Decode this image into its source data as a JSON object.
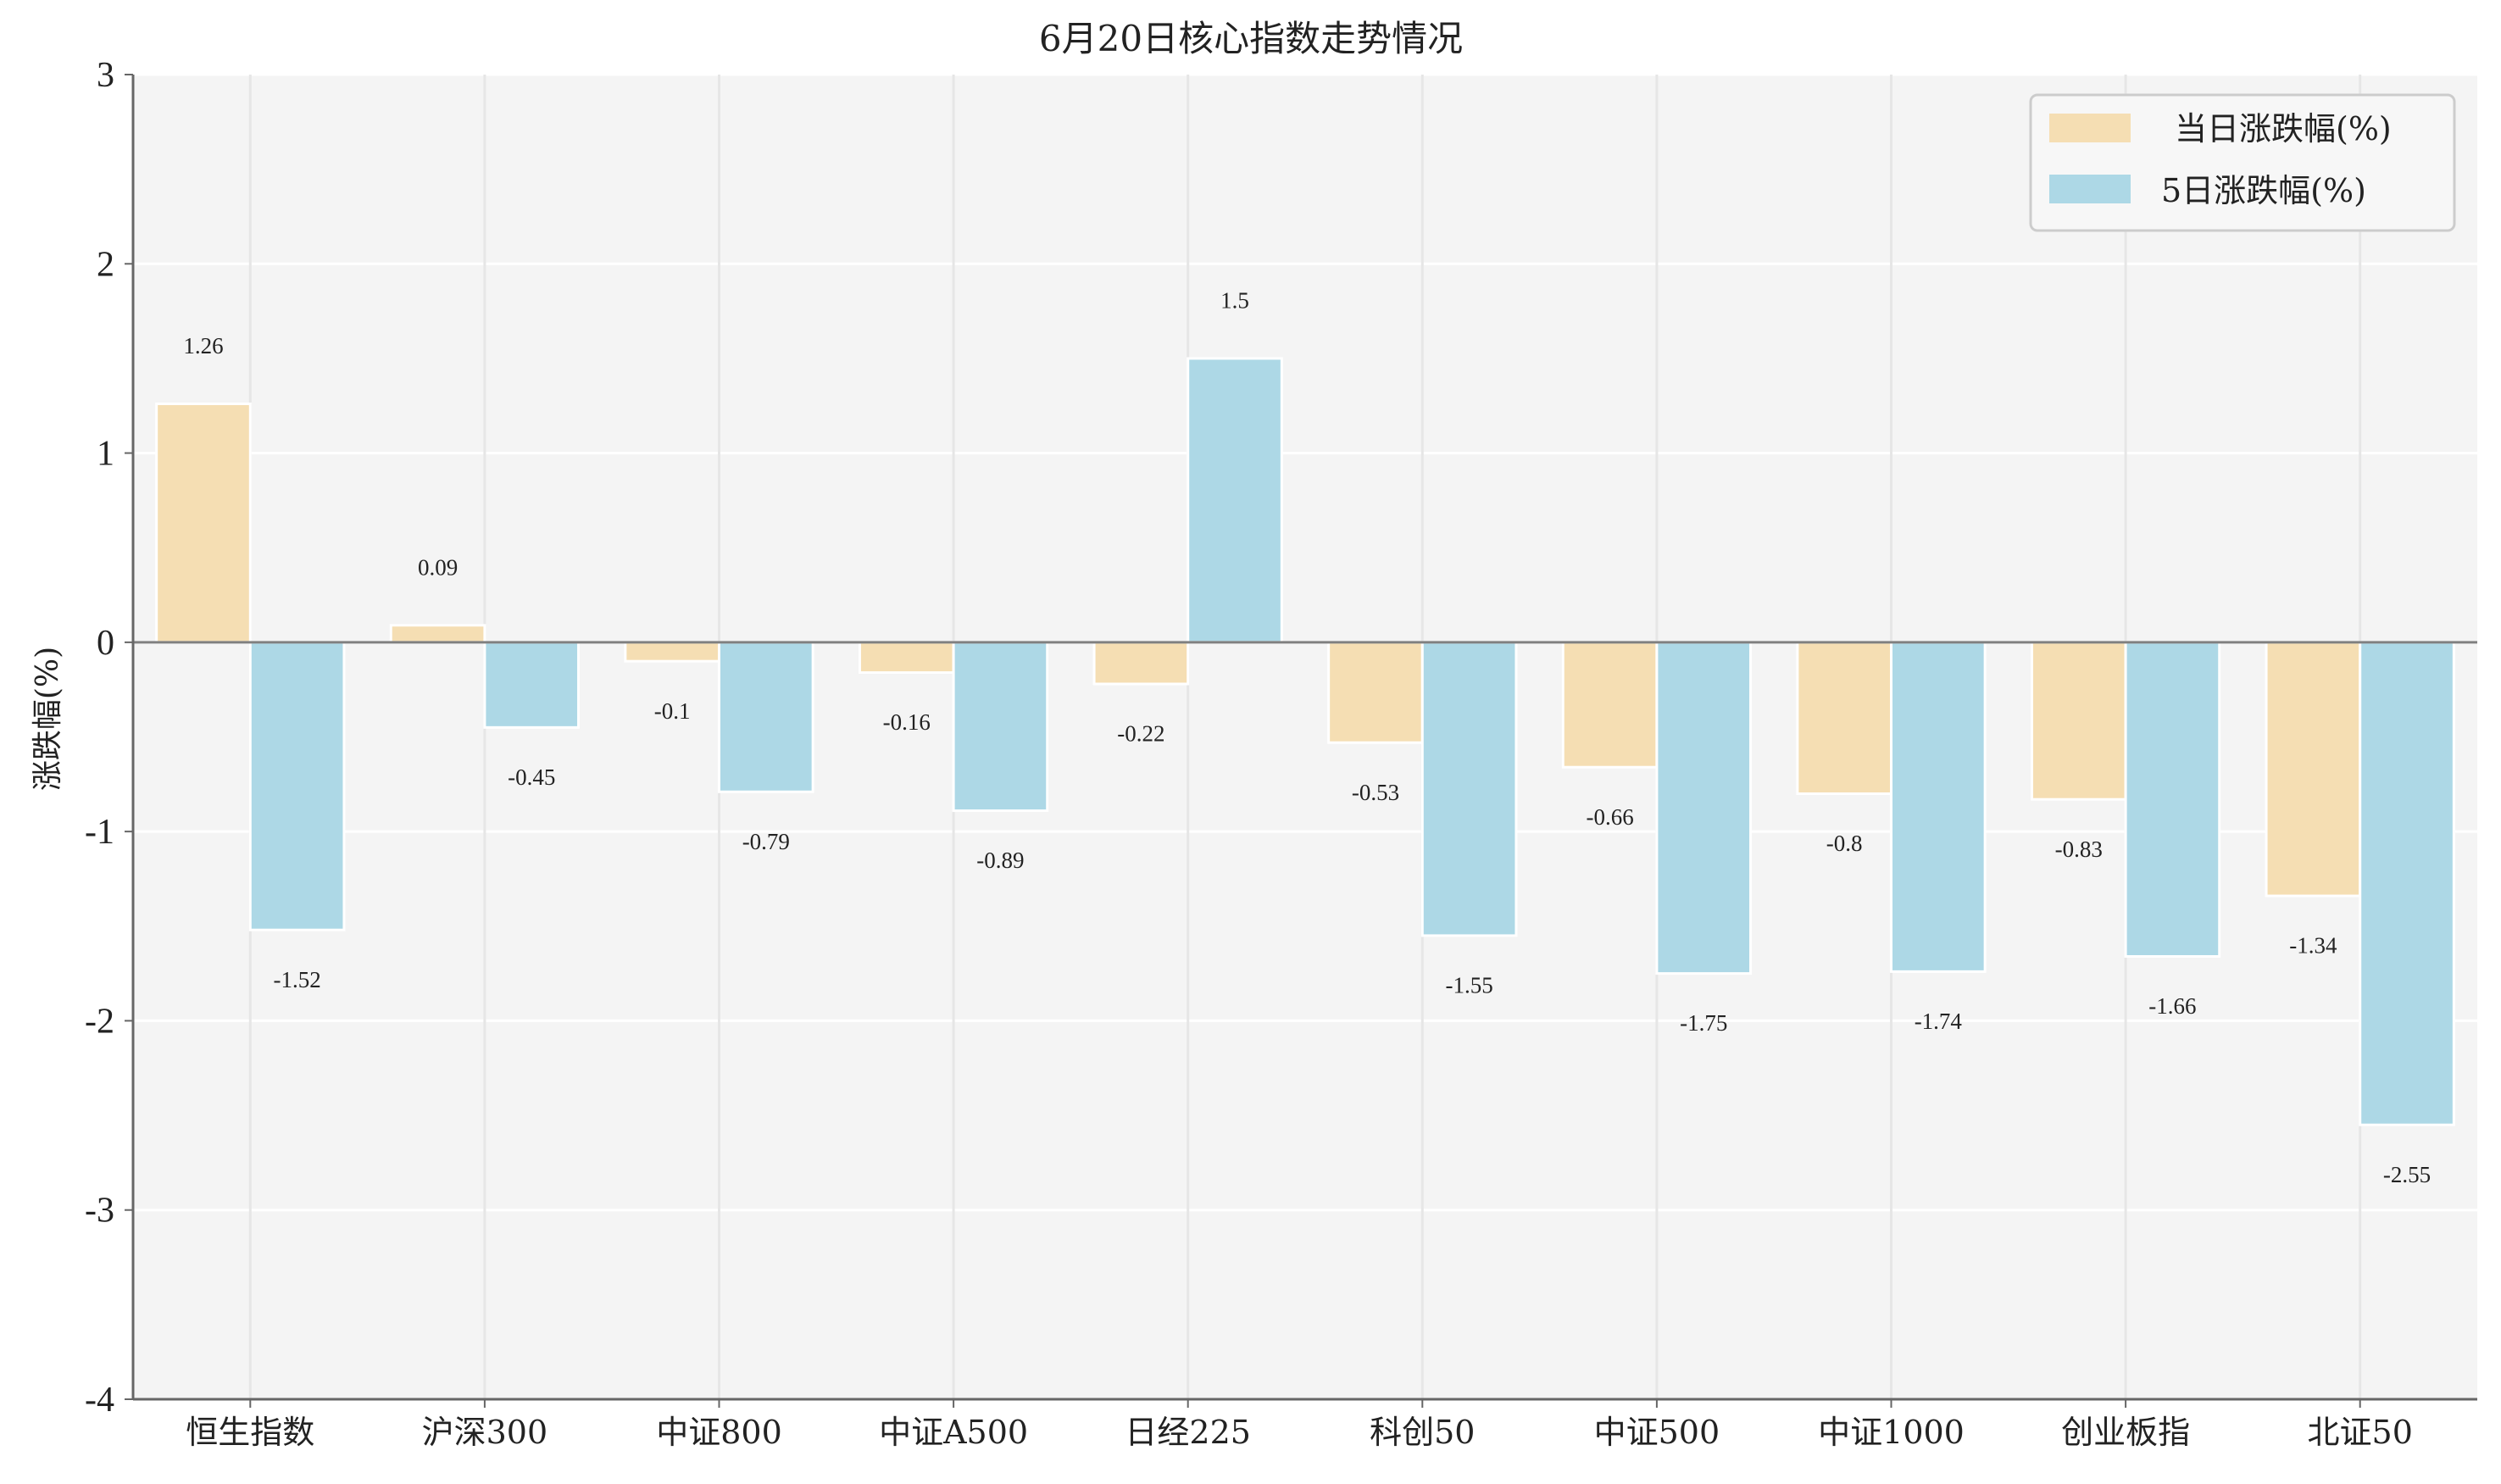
{
  "chart_data": {
    "type": "bar",
    "title": "6月20日核心指数走势情况",
    "xlabel": "",
    "ylabel": "涨跌幅(%)",
    "ylim": [
      -4,
      3
    ],
    "yticks": [
      3,
      2,
      1,
      0,
      -1,
      -2,
      -3,
      -4
    ],
    "grid": true,
    "legend_position": "top-right",
    "categories": [
      "恒生指数",
      "沪深300",
      "中证800",
      "中证A500",
      "日经225",
      "科创50",
      "中证500",
      "中证1000",
      "创业板指",
      "北证50"
    ],
    "series": [
      {
        "name": "当日涨跌幅(%)",
        "color": "#f5deb3",
        "values": [
          1.26,
          0.09,
          -0.1,
          -0.16,
          -0.22,
          -0.53,
          -0.66,
          -0.8,
          -0.83,
          -1.34
        ],
        "labels": [
          "1.26",
          "0.09",
          "-0.1",
          "-0.16",
          "-0.22",
          "-0.53",
          "-0.66",
          "-0.8",
          "-0.83",
          "-1.34"
        ]
      },
      {
        "name": "5日涨跌幅(%)",
        "color": "#add8e6",
        "values": [
          -1.52,
          -0.45,
          -0.79,
          -0.89,
          1.5,
          -1.55,
          -1.75,
          -1.74,
          -1.66,
          -2.55
        ],
        "labels": [
          "-1.52",
          "-0.45",
          "-0.79",
          "-0.89",
          "1.5",
          "-1.55",
          "-1.75",
          "-1.74",
          "-1.66",
          "-2.55"
        ]
      }
    ]
  }
}
